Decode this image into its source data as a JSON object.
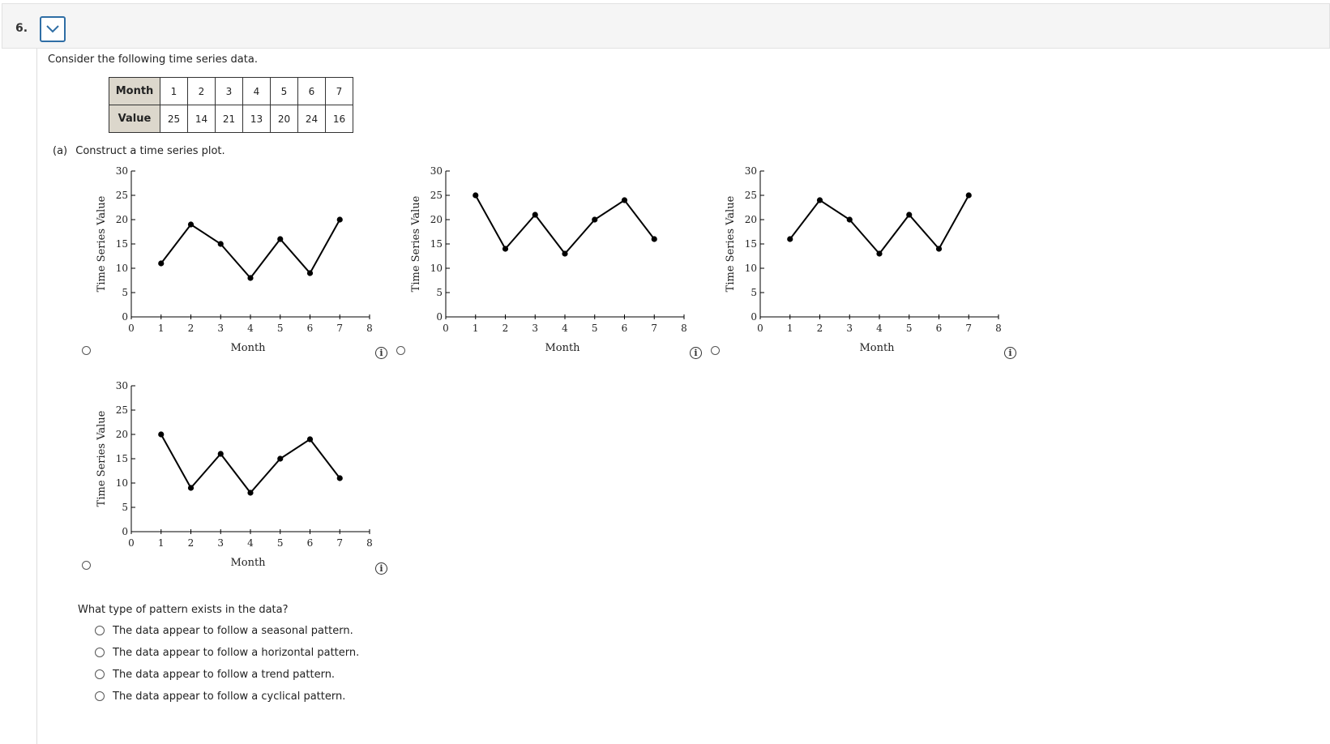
{
  "question": {
    "number": "6."
  },
  "prompt": "Consider the following time series data.",
  "table": {
    "row_labels": [
      "Month",
      "Value"
    ],
    "months": [
      "1",
      "2",
      "3",
      "4",
      "5",
      "6",
      "7"
    ],
    "values": [
      "25",
      "14",
      "21",
      "13",
      "20",
      "24",
      "16"
    ]
  },
  "part_a": {
    "label": "(a)",
    "text": "Construct a time series plot."
  },
  "info_icon": "i",
  "chart_data": [
    {
      "type": "line",
      "x": [
        1,
        2,
        3,
        4,
        5,
        6,
        7
      ],
      "y": [
        11,
        19,
        15,
        8,
        16,
        9,
        20
      ],
      "xlabel": "Month",
      "ylabel": "Time Series Value",
      "xlim": [
        0,
        8
      ],
      "ylim": [
        0,
        30
      ],
      "xticks": [
        "0",
        "1",
        "2",
        "3",
        "4",
        "5",
        "6",
        "7",
        "8"
      ],
      "yticks": [
        "0",
        "5",
        "10",
        "15",
        "20",
        "25",
        "30"
      ]
    },
    {
      "type": "line",
      "x": [
        1,
        2,
        3,
        4,
        5,
        6,
        7
      ],
      "y": [
        25,
        14,
        21,
        13,
        20,
        24,
        16
      ],
      "xlabel": "Month",
      "ylabel": "Time Series Value",
      "xlim": [
        0,
        8
      ],
      "ylim": [
        0,
        30
      ],
      "xticks": [
        "0",
        "1",
        "2",
        "3",
        "4",
        "5",
        "6",
        "7",
        "8"
      ],
      "yticks": [
        "0",
        "5",
        "10",
        "15",
        "20",
        "25",
        "30"
      ]
    },
    {
      "type": "line",
      "x": [
        1,
        2,
        3,
        4,
        5,
        6,
        7
      ],
      "y": [
        16,
        24,
        20,
        13,
        21,
        14,
        25
      ],
      "xlabel": "Month",
      "ylabel": "Time Series Value",
      "xlim": [
        0,
        8
      ],
      "ylim": [
        0,
        30
      ],
      "xticks": [
        "0",
        "1",
        "2",
        "3",
        "4",
        "5",
        "6",
        "7",
        "8"
      ],
      "yticks": [
        "0",
        "5",
        "10",
        "15",
        "20",
        "25",
        "30"
      ]
    },
    {
      "type": "line",
      "x": [
        1,
        2,
        3,
        4,
        5,
        6,
        7
      ],
      "y": [
        20,
        9,
        16,
        8,
        15,
        19,
        11
      ],
      "xlabel": "Month",
      "ylabel": "Time Series Value",
      "xlim": [
        0,
        8
      ],
      "ylim": [
        0,
        30
      ],
      "xticks": [
        "0",
        "1",
        "2",
        "3",
        "4",
        "5",
        "6",
        "7",
        "8"
      ],
      "yticks": [
        "0",
        "5",
        "10",
        "15",
        "20",
        "25",
        "30"
      ]
    }
  ],
  "pattern_question": "What type of pattern exists in the data?",
  "pattern_options": [
    "The data appear to follow a seasonal pattern.",
    "The data appear to follow a horizontal pattern.",
    "The data appear to follow a trend pattern.",
    "The data appear to follow a cyclical pattern."
  ]
}
